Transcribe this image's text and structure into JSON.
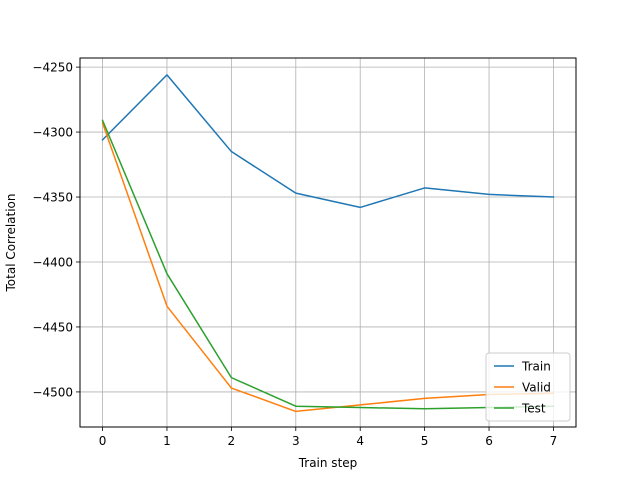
{
  "chart_data": {
    "type": "line",
    "title": "",
    "xlabel": "Train step",
    "ylabel": "Total Correlation",
    "xlim": [
      -0.35,
      7.35
    ],
    "ylim": [
      -4527,
      -4243
    ],
    "xticks": [
      0,
      1,
      2,
      3,
      4,
      5,
      6,
      7
    ],
    "yticks": [
      -4500,
      -4450,
      -4400,
      -4350,
      -4300,
      -4250
    ],
    "grid": true,
    "legend_position": "lower-right",
    "x": [
      0,
      1,
      2,
      3,
      4,
      5,
      6,
      7
    ],
    "series": [
      {
        "name": "Train",
        "color": "#1f77b4",
        "values": [
          -4306,
          -4256,
          -4315,
          -4347,
          -4358,
          -4343,
          -4348,
          -4350
        ]
      },
      {
        "name": "Valid",
        "color": "#ff7f0e",
        "values": [
          -4293,
          -4434,
          -4497,
          -4515,
          -4510,
          -4505,
          -4502,
          -4501
        ]
      },
      {
        "name": "Test",
        "color": "#2ca02c",
        "values": [
          -4291,
          -4409,
          -4489,
          -4511,
          -4512,
          -4513,
          -4512,
          -4511
        ]
      }
    ]
  }
}
